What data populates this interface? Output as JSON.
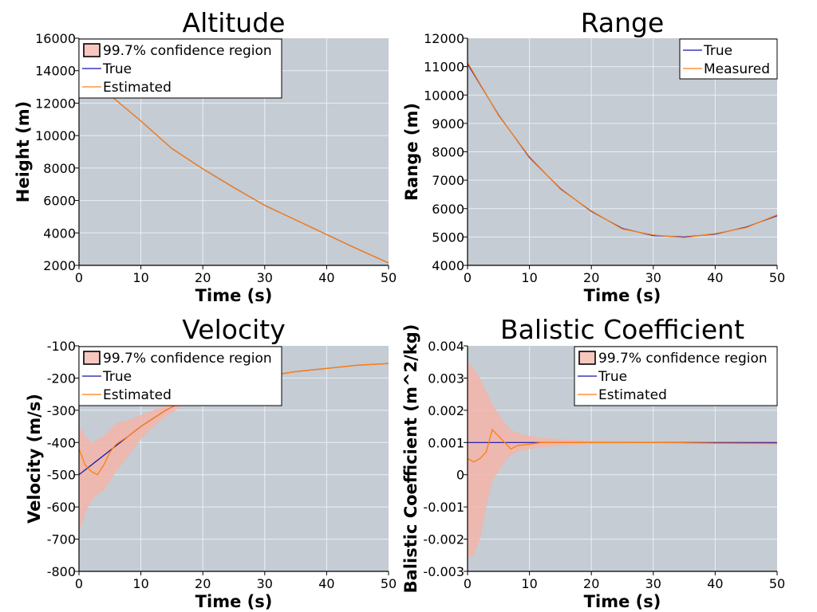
{
  "colors": {
    "background": "#c5ccd4",
    "grid": "#e8f0f6",
    "true": "#1010b0",
    "estimated": "#ff7f0e",
    "confidence_fill": "#f2b4a8",
    "confidence_legend_fill": "#f6c8c0"
  },
  "chart_data": [
    {
      "type": "line",
      "title": "Altitude",
      "xlabel": "Time (s)",
      "ylabel": "Height (m)",
      "xlim": [
        0,
        50
      ],
      "ylim": [
        2000,
        16000
      ],
      "xticks": [
        0,
        10,
        20,
        30,
        40,
        50
      ],
      "yticks": [
        2000,
        4000,
        6000,
        8000,
        10000,
        12000,
        14000,
        16000
      ],
      "xtick_labels": [
        "0",
        "10",
        "20",
        "30",
        "40",
        "50"
      ],
      "ytick_labels": [
        "2000",
        "4000",
        "6000",
        "8000",
        "10000",
        "12000",
        "14000",
        "16000"
      ],
      "grid": true,
      "legend": "top-left",
      "legend_entries": [
        "99.7% confidence region",
        "True",
        "Estimated"
      ],
      "x": [
        0,
        5,
        10,
        15,
        20,
        25,
        30,
        35,
        40,
        45,
        50
      ],
      "series": [
        {
          "name": "True",
          "values": [
            14300,
            12500,
            10900,
            9200,
            7950,
            6800,
            5700,
            4800,
            3900,
            3000,
            2150
          ]
        },
        {
          "name": "Estimated",
          "values": [
            14300,
            12500,
            10900,
            9200,
            7950,
            6800,
            5700,
            4800,
            3900,
            3000,
            2150
          ]
        },
        {
          "name": "99.7% confidence region",
          "upper": [
            14350,
            12540,
            10930,
            9220,
            7970,
            6820,
            5720,
            4820,
            3920,
            3020,
            2170
          ],
          "lower": [
            14250,
            12460,
            10870,
            9180,
            7930,
            6780,
            5680,
            4780,
            3880,
            2980,
            2130
          ]
        }
      ]
    },
    {
      "type": "line",
      "title": "Range",
      "xlabel": "Time (s)",
      "ylabel": "Range (m)",
      "xlim": [
        0,
        50
      ],
      "ylim": [
        4000,
        12000
      ],
      "xticks": [
        0,
        10,
        20,
        30,
        40,
        50
      ],
      "yticks": [
        4000,
        5000,
        6000,
        7000,
        8000,
        9000,
        10000,
        11000,
        12000
      ],
      "xtick_labels": [
        "0",
        "10",
        "20",
        "30",
        "40",
        "50"
      ],
      "ytick_labels": [
        "4000",
        "5000",
        "6000",
        "7000",
        "8000",
        "9000",
        "10000",
        "11000",
        "12000"
      ],
      "grid": true,
      "legend": "top-right",
      "legend_entries": [
        "True",
        "Measured"
      ],
      "x": [
        0,
        5,
        10,
        15,
        20,
        25,
        30,
        35,
        40,
        45,
        50
      ],
      "series": [
        {
          "name": "True",
          "values": [
            11100,
            9300,
            7800,
            6700,
            5900,
            5300,
            5050,
            5000,
            5100,
            5350,
            5750
          ]
        },
        {
          "name": "Measured",
          "values": [
            11150,
            9280,
            7830,
            6680,
            5920,
            5280,
            5070,
            4980,
            5120,
            5330,
            5780
          ]
        }
      ]
    },
    {
      "type": "line",
      "title": "Velocity",
      "xlabel": "Time (s)",
      "ylabel": "Velocity (m/s)",
      "xlim": [
        0,
        50
      ],
      "ylim": [
        -800,
        -100
      ],
      "xticks": [
        0,
        10,
        20,
        30,
        40,
        50
      ],
      "yticks": [
        -800,
        -700,
        -600,
        -500,
        -400,
        -300,
        -200,
        -100
      ],
      "xtick_labels": [
        "0",
        "10",
        "20",
        "30",
        "40",
        "50"
      ],
      "ytick_labels": [
        "-800",
        "-700",
        "-600",
        "-500",
        "-400",
        "-300",
        "-200",
        "-100"
      ],
      "grid": true,
      "legend": "top-left",
      "legend_entries": [
        "99.7% confidence region",
        "True",
        "Estimated"
      ],
      "x": [
        0,
        1,
        2,
        3,
        4,
        5,
        6,
        8,
        10,
        12,
        14,
        16,
        20,
        25,
        30,
        35,
        40,
        45,
        50
      ],
      "series": [
        {
          "name": "True",
          "values": [
            -500,
            -485,
            -470,
            -455,
            -440,
            -425,
            -410,
            -380,
            -350,
            -325,
            -300,
            -280,
            -245,
            -215,
            -195,
            -180,
            -170,
            -160,
            -155
          ]
        },
        {
          "name": "Estimated",
          "values": [
            -420,
            -470,
            -490,
            -500,
            -470,
            -430,
            -405,
            -380,
            -350,
            -325,
            -300,
            -280,
            -245,
            -215,
            -195,
            -180,
            -170,
            -160,
            -155
          ]
        },
        {
          "name": "99.7% confidence region",
          "upper": [
            -350,
            -380,
            -400,
            -390,
            -380,
            -360,
            -340,
            -330,
            -315,
            -300,
            -285,
            -270,
            -240,
            -212,
            -193,
            -178,
            -168,
            -158,
            -153
          ],
          "lower": [
            -680,
            -620,
            -580,
            -560,
            -550,
            -520,
            -490,
            -440,
            -390,
            -350,
            -320,
            -295,
            -250,
            -218,
            -197,
            -182,
            -172,
            -162,
            -157
          ]
        }
      ]
    },
    {
      "type": "line",
      "title": "Balistic Coefficient",
      "xlabel": "Time (s)",
      "ylabel": "Balistic Coefficient (m^2/kg)",
      "xlim": [
        0,
        50
      ],
      "ylim": [
        -0.003,
        0.004
      ],
      "xticks": [
        0,
        10,
        20,
        30,
        40,
        50
      ],
      "yticks": [
        -0.003,
        -0.002,
        -0.001,
        0,
        0.001,
        0.002,
        0.003,
        0.004
      ],
      "xtick_labels": [
        "0",
        "10",
        "20",
        "30",
        "40",
        "50"
      ],
      "ytick_labels": [
        "-0.003",
        "-0.002",
        "-0.001",
        "0",
        "0.001",
        "0.002",
        "0.003",
        "0.004"
      ],
      "grid": true,
      "legend": "top-right",
      "legend_entries": [
        "99.7% confidence region",
        "True",
        "Estimated"
      ],
      "x": [
        0,
        1,
        2,
        3,
        4,
        5,
        6,
        7,
        8,
        10,
        12,
        15,
        20,
        30,
        40,
        50
      ],
      "series": [
        {
          "name": "True",
          "values": [
            0.001,
            0.001,
            0.001,
            0.001,
            0.001,
            0.001,
            0.001,
            0.001,
            0.001,
            0.001,
            0.001,
            0.001,
            0.001,
            0.001,
            0.001,
            0.001
          ]
        },
        {
          "name": "Estimated",
          "values": [
            0.0005,
            0.0004,
            0.0005,
            0.0007,
            0.0014,
            0.0012,
            0.001,
            0.0008,
            0.0009,
            0.00095,
            0.001,
            0.001,
            0.001,
            0.001,
            0.00098,
            0.00097
          ]
        },
        {
          "name": "99.7% confidence region",
          "upper": [
            0.0035,
            0.0033,
            0.003,
            0.0026,
            0.0022,
            0.0019,
            0.0016,
            0.0014,
            0.0013,
            0.0012,
            0.00115,
            0.0011,
            0.00105,
            0.00103,
            0.00103,
            0.00102
          ],
          "lower": [
            -0.0026,
            -0.0025,
            -0.002,
            -0.001,
            -0.0002,
            0.0001,
            0.0004,
            0.0006,
            0.0007,
            0.0008,
            0.00085,
            0.0009,
            0.00095,
            0.00097,
            0.00095,
            0.00093
          ]
        }
      ]
    }
  ]
}
